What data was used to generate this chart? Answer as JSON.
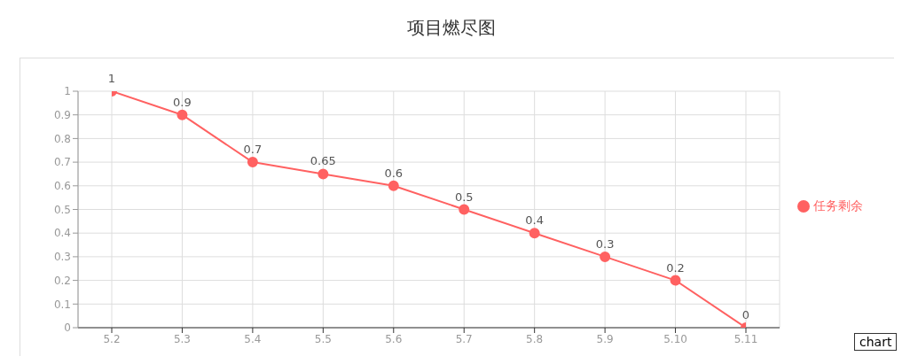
{
  "chart_data": {
    "type": "line",
    "title": "项目燃尽图",
    "categories": [
      "5.2",
      "5.3",
      "5.4",
      "5.5",
      "5.6",
      "5.7",
      "5.8",
      "5.9",
      "5.10",
      "5.11"
    ],
    "series": [
      {
        "name": "任务剩余",
        "color": "#ff6161",
        "values": [
          1,
          0.9,
          0.7,
          0.65,
          0.6,
          0.5,
          0.4,
          0.3,
          0.2,
          0
        ]
      }
    ],
    "ylim": [
      0,
      1
    ],
    "yticks": [
      0,
      0.1,
      0.2,
      0.3,
      0.4,
      0.5,
      0.6,
      0.7,
      0.8,
      0.9,
      1
    ],
    "grid": true,
    "legend": "right",
    "marker": "circle",
    "line_style": "solid",
    "data_labels": true,
    "annotations": [
      "chart"
    ]
  }
}
